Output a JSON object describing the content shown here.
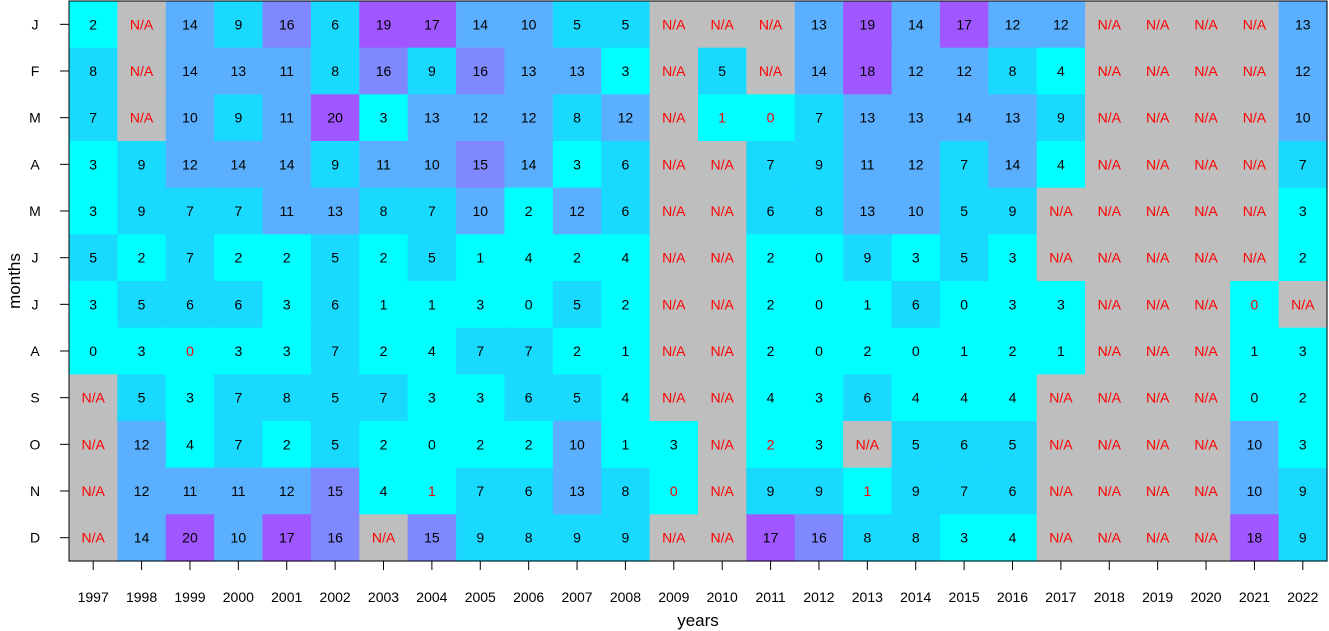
{
  "chart_data": {
    "type": "heatmap",
    "title": "",
    "xlabel": "years",
    "ylabel": "months",
    "x": [
      "1997",
      "1998",
      "1999",
      "2000",
      "2001",
      "2002",
      "2003",
      "2004",
      "2005",
      "2006",
      "2007",
      "2008",
      "2009",
      "2010",
      "2011",
      "2012",
      "2013",
      "2014",
      "2015",
      "2016",
      "2017",
      "2018",
      "2019",
      "2020",
      "2021",
      "2022"
    ],
    "y": [
      "J",
      "F",
      "M",
      "A",
      "M",
      "J",
      "J",
      "A",
      "S",
      "O",
      "N",
      "D"
    ],
    "missing_label": "N/A",
    "values": [
      [
        2,
        null,
        14,
        9,
        16,
        6,
        19,
        17,
        14,
        10,
        5,
        5,
        null,
        null,
        null,
        13,
        19,
        14,
        17,
        12,
        12,
        null,
        null,
        null,
        null,
        13
      ],
      [
        8,
        null,
        14,
        13,
        11,
        8,
        16,
        9,
        16,
        13,
        13,
        3,
        null,
        5,
        null,
        14,
        18,
        12,
        12,
        8,
        4,
        null,
        null,
        null,
        null,
        12
      ],
      [
        7,
        null,
        10,
        9,
        11,
        20,
        3,
        13,
        12,
        12,
        8,
        12,
        null,
        1,
        0,
        7,
        13,
        13,
        14,
        13,
        9,
        null,
        null,
        null,
        null,
        10
      ],
      [
        3,
        9,
        12,
        14,
        14,
        9,
        11,
        10,
        15,
        14,
        3,
        6,
        null,
        null,
        7,
        9,
        11,
        12,
        7,
        14,
        4,
        null,
        null,
        null,
        null,
        7
      ],
      [
        3,
        9,
        7,
        7,
        11,
        13,
        8,
        7,
        10,
        2,
        12,
        6,
        null,
        null,
        6,
        8,
        13,
        10,
        5,
        9,
        null,
        null,
        null,
        null,
        null,
        3
      ],
      [
        5,
        2,
        7,
        2,
        2,
        5,
        2,
        5,
        1,
        4,
        2,
        4,
        null,
        null,
        2,
        0,
        9,
        3,
        5,
        3,
        null,
        null,
        null,
        null,
        null,
        2
      ],
      [
        3,
        5,
        6,
        6,
        3,
        6,
        1,
        1,
        3,
        0,
        5,
        2,
        null,
        null,
        2,
        0,
        1,
        6,
        0,
        3,
        3,
        null,
        null,
        null,
        0,
        null
      ],
      [
        0,
        3,
        0,
        3,
        3,
        7,
        2,
        4,
        7,
        7,
        2,
        1,
        null,
        null,
        2,
        0,
        2,
        0,
        1,
        2,
        1,
        null,
        null,
        null,
        1,
        3
      ],
      [
        null,
        5,
        3,
        7,
        8,
        5,
        7,
        3,
        3,
        6,
        5,
        4,
        null,
        null,
        4,
        3,
        6,
        4,
        4,
        4,
        null,
        null,
        null,
        null,
        0,
        2
      ],
      [
        null,
        12,
        4,
        7,
        2,
        5,
        2,
        0,
        2,
        2,
        10,
        1,
        3,
        null,
        2,
        3,
        null,
        5,
        6,
        5,
        null,
        null,
        null,
        null,
        10,
        3
      ],
      [
        null,
        12,
        11,
        11,
        12,
        15,
        4,
        1,
        7,
        6,
        13,
        8,
        0,
        null,
        9,
        9,
        1,
        9,
        7,
        6,
        null,
        null,
        null,
        null,
        10,
        9
      ],
      [
        null,
        14,
        20,
        10,
        17,
        16,
        null,
        15,
        9,
        8,
        9,
        9,
        null,
        null,
        17,
        16,
        8,
        8,
        3,
        4,
        null,
        null,
        null,
        null,
        18,
        9
      ]
    ],
    "red_text_cells": [
      [
        2,
        13
      ],
      [
        2,
        14
      ],
      [
        6,
        24
      ],
      [
        7,
        2
      ],
      [
        9,
        14
      ],
      [
        10,
        7
      ],
      [
        10,
        12
      ],
      [
        10,
        16
      ]
    ],
    "colors": {
      "missing_fill": "#bebebe",
      "missing_text": "#ff0000",
      "highlight_text": "#ff0000",
      "value_text": "#000000",
      "scale": [
        "#00ffff",
        "#19d9ff",
        "#5ab0ff",
        "#7f88ff",
        "#a057ff"
      ]
    },
    "grid": false,
    "legend": "none"
  }
}
